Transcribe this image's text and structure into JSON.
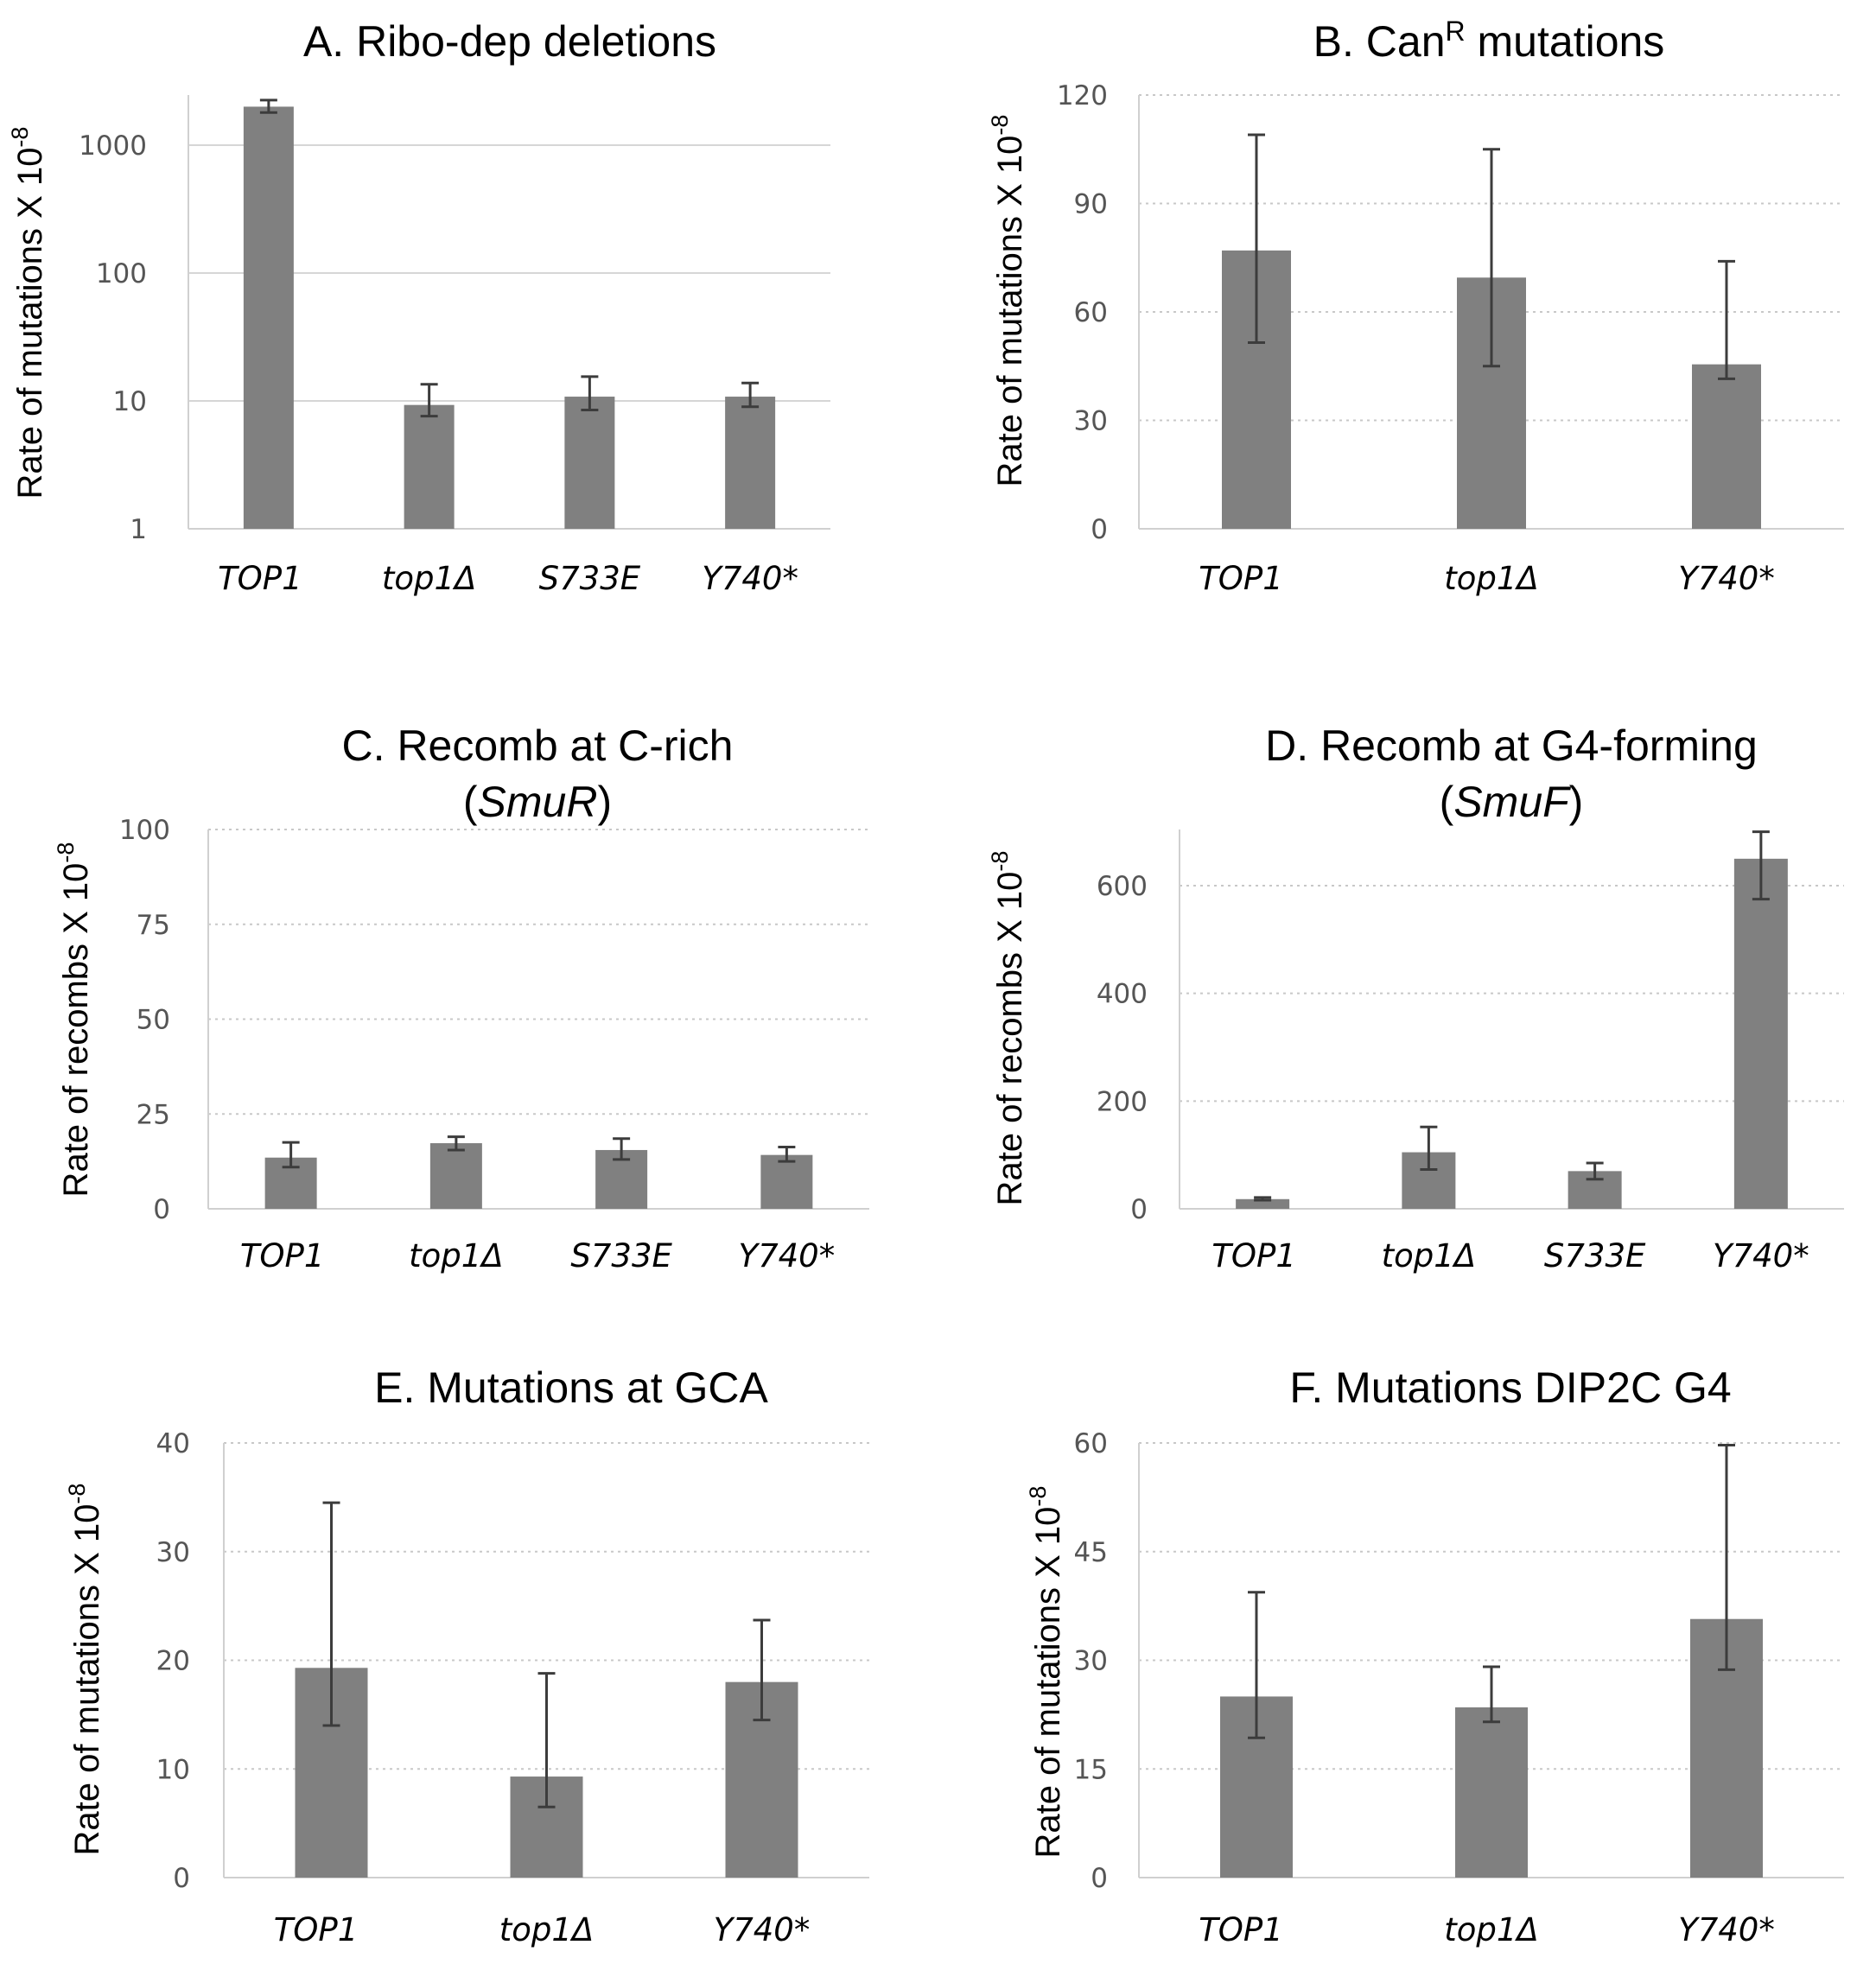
{
  "chart_data": [
    {
      "type": "bar",
      "title": "A. Ribo-dep deletions",
      "ylabel": "Rate of mutations X 10",
      "ylabel_exp": "-8",
      "yscale": "log",
      "ylim": [
        1,
        3000
      ],
      "yticks": [
        1,
        10,
        100,
        1000
      ],
      "ytick_labels": [
        "1",
        "10",
        "100",
        "1000"
      ],
      "grid": "solid",
      "categories": [
        "TOP1",
        "top1Δ",
        "S733E",
        "Y740*"
      ],
      "values": [
        2000,
        9.3,
        10.8,
        10.8
      ],
      "err_low": [
        1800,
        7.6,
        8.5,
        9.0
      ],
      "err_high": [
        2250,
        13.5,
        15.5,
        13.8
      ]
    },
    {
      "type": "bar",
      "title_main": "B. Can",
      "title_sup": "R",
      "title_rest": " mutations",
      "ylabel": "Rate of mutations X 10",
      "ylabel_exp": "-8",
      "yscale": "linear",
      "ylim": [
        0,
        120
      ],
      "yticks": [
        0,
        30,
        60,
        90,
        120
      ],
      "ytick_labels": [
        "0",
        "30",
        "60",
        "90",
        "120"
      ],
      "grid": "dotted",
      "categories": [
        "TOP1",
        "top1Δ",
        "Y740*"
      ],
      "values": [
        77,
        69.5,
        45.5
      ],
      "err_low": [
        51.5,
        45,
        41.5
      ],
      "err_high": [
        109,
        105,
        74
      ]
    },
    {
      "type": "bar",
      "title_line1": "C. Recomb at C-rich",
      "title_line2_pre": "(",
      "title_line2_it": "SmuR",
      "title_line2_post": ")",
      "ylabel": "Rate of recombs X 10",
      "ylabel_exp": "-8",
      "yscale": "linear",
      "ylim": [
        0,
        100
      ],
      "yticks": [
        0,
        25,
        50,
        75,
        100
      ],
      "ytick_labels": [
        "0",
        "25",
        "50",
        "75",
        "100"
      ],
      "grid": "dotted",
      "categories": [
        "TOP1",
        "top1Δ",
        "S733E",
        "Y740*"
      ],
      "values": [
        13.5,
        17.3,
        15.5,
        14.2
      ],
      "err_low": [
        11,
        15.5,
        13,
        12.5
      ],
      "err_high": [
        17.5,
        19,
        18.5,
        16.3
      ]
    },
    {
      "type": "bar",
      "title_line1": "D. Recomb at G4-forming",
      "title_line2_pre": "(",
      "title_line2_it": "SmuF",
      "title_line2_post": ")",
      "ylabel": "Rate of recombs X 10",
      "ylabel_exp": "-8",
      "yscale": "linear",
      "ylim": [
        0,
        700
      ],
      "yticks": [
        0,
        200,
        400,
        600
      ],
      "ytick_labels": [
        "0",
        "200",
        "400",
        "600"
      ],
      "grid": "dotted",
      "categories": [
        "TOP1",
        "top1Δ",
        "S733E",
        "Y740*"
      ],
      "values": [
        18,
        105,
        70,
        650
      ],
      "err_low": [
        16,
        73,
        55,
        575
      ],
      "err_high": [
        21,
        152,
        85,
        700
      ]
    },
    {
      "type": "bar",
      "title": "E. Mutations at GCA",
      "ylabel": "Rate of mutations X 10",
      "ylabel_exp": "-8",
      "yscale": "linear",
      "ylim": [
        0,
        40
      ],
      "yticks": [
        0,
        10,
        20,
        30,
        40
      ],
      "ytick_labels": [
        "0",
        "10",
        "20",
        "30",
        "40"
      ],
      "grid": "dotted",
      "categories": [
        "TOP1",
        "top1Δ",
        "Y740*"
      ],
      "values": [
        19.3,
        9.3,
        18
      ],
      "err_low": [
        14,
        6.5,
        14.5
      ],
      "err_high": [
        34.5,
        18.8,
        23.7
      ]
    },
    {
      "type": "bar",
      "title": "F. Mutations DIP2C G4",
      "ylabel": "Rate of mutations X 10",
      "ylabel_exp": "-8",
      "yscale": "linear",
      "ylim": [
        0,
        60
      ],
      "yticks": [
        0,
        15,
        30,
        45,
        60
      ],
      "ytick_labels": [
        "0",
        "15",
        "30",
        "45",
        "60"
      ],
      "grid": "dotted",
      "categories": [
        "TOP1",
        "top1Δ",
        "Y740*"
      ],
      "values": [
        25,
        23.5,
        35.7
      ],
      "err_low": [
        19.3,
        21.5,
        28.7
      ],
      "err_high": [
        39.4,
        29.1,
        59.7
      ]
    }
  ]
}
